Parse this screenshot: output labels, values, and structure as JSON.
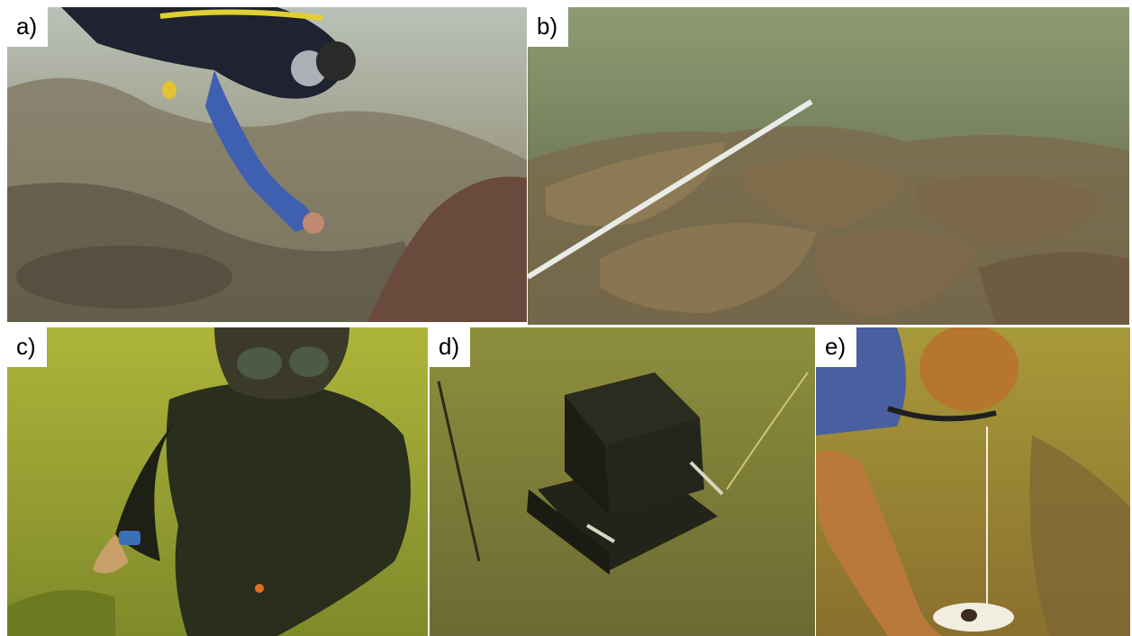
{
  "figure": {
    "panels": [
      {
        "label": "a)"
      },
      {
        "label": "b)"
      },
      {
        "label": "c)"
      },
      {
        "label": "d)"
      },
      {
        "label": "e)"
      }
    ]
  }
}
